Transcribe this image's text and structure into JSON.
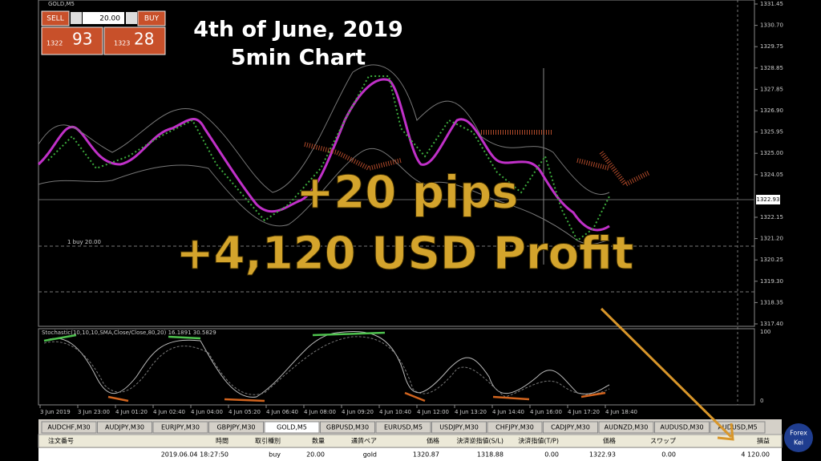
{
  "window": {
    "symbol": "GOLD,M5"
  },
  "trade_panel": {
    "sell": "SELL",
    "lot": "20.00",
    "buy": "BUY",
    "sell_small": "1322",
    "sell_big": "93",
    "buy_small": "1323",
    "buy_big": "28"
  },
  "overlay": {
    "title": "4th of June, 2019",
    "subtitle": "5min Chart",
    "pips": "+20 pips",
    "profit": "+4,120 USD Profit"
  },
  "price_axis": [
    "1331.45",
    "1330.70",
    "1329.75",
    "1328.85",
    "1327.85",
    "1326.90",
    "1325.95",
    "1325.00",
    "1324.05",
    "1322.15",
    "1321.20",
    "1320.25",
    "1319.30",
    "1318.35",
    "1317.40"
  ],
  "current_price": "1322.93",
  "order_line_label": "1 buy 20.00",
  "indicator": {
    "label": "Stochastic(10,10,10,SMA,Close/Close,80,20) 16.1891 30.5829",
    "axis": [
      "100",
      "0"
    ]
  },
  "time_axis": [
    "3 Jun 2019",
    "3 Jun 23:00",
    "4 Jun 01:20",
    "4 Jun 02:40",
    "4 Jun 04:00",
    "4 Jun 05:20",
    "4 Jun 06:40",
    "4 Jun 08:00",
    "4 Jun 09:20",
    "4 Jun 10:40",
    "4 Jun 12:00",
    "4 Jun 13:20",
    "4 Jun 14:40",
    "4 Jun 16:00",
    "4 Jun 17:20",
    "4 Jun 18:40"
  ],
  "tabs": [
    "AUDCHF,M30",
    "AUDJPY,M30",
    "EURJPY,M30",
    "GBPJPY,M30",
    "GOLD,M5",
    "GBPUSD,M30",
    "EURUSD,M5",
    "USDJPY,M30",
    "CHFJPY,M30",
    "CADJPY,M30",
    "AUDNZD,M30",
    "AUDUSD,M30",
    "AUDUSD,M5"
  ],
  "active_tab": 4,
  "table": {
    "headers": [
      "注文番号",
      "時間",
      "取引種別",
      "数量",
      "通貨ペア",
      "価格",
      "決済逆指値(S/L)",
      "決済指値(T/P)",
      "価格",
      "スワップ",
      "損益"
    ],
    "row": [
      "",
      "2019.06.04 18:27:50",
      "buy",
      "20.00",
      "gold",
      "1320.87",
      "1318.88",
      "0.00",
      "1322.93",
      "0.00",
      "4 120.00"
    ]
  },
  "logo": {
    "line1": "Forex",
    "line2": "Kei"
  }
}
